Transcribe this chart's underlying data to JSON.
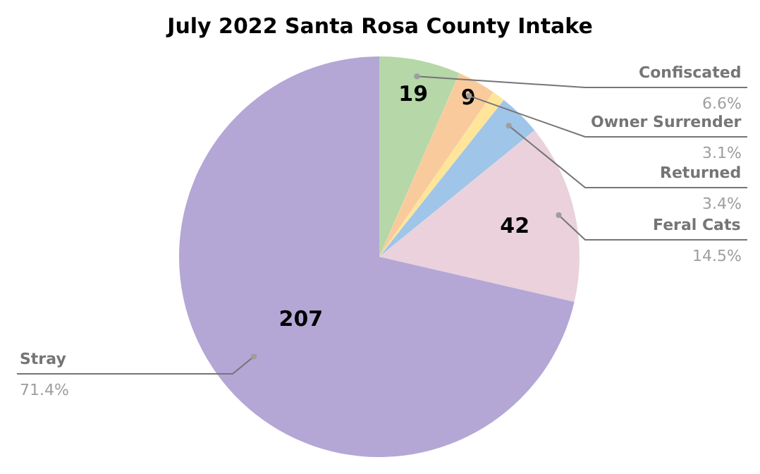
{
  "chart_data": {
    "type": "pie",
    "title": "July 2022 Santa Rosa County Intake",
    "categories": [
      "Confiscated",
      "Owner Surrender",
      null,
      "Returned",
      "Feral Cats",
      "Stray"
    ],
    "values": [
      19,
      9,
      3,
      10,
      42,
      207
    ],
    "colors": [
      "#b6d7a8",
      "#f9cb9c",
      "#ffe599",
      "#9fc5e8",
      "#ead1dc",
      "#b4a7d6"
    ],
    "value_labels": [
      "19",
      "9",
      null,
      null,
      "42",
      "207"
    ],
    "annotations": [
      "6.6%",
      "3.1%",
      "3.4%",
      "14.5%",
      "71.4%"
    ],
    "legend": false
  }
}
